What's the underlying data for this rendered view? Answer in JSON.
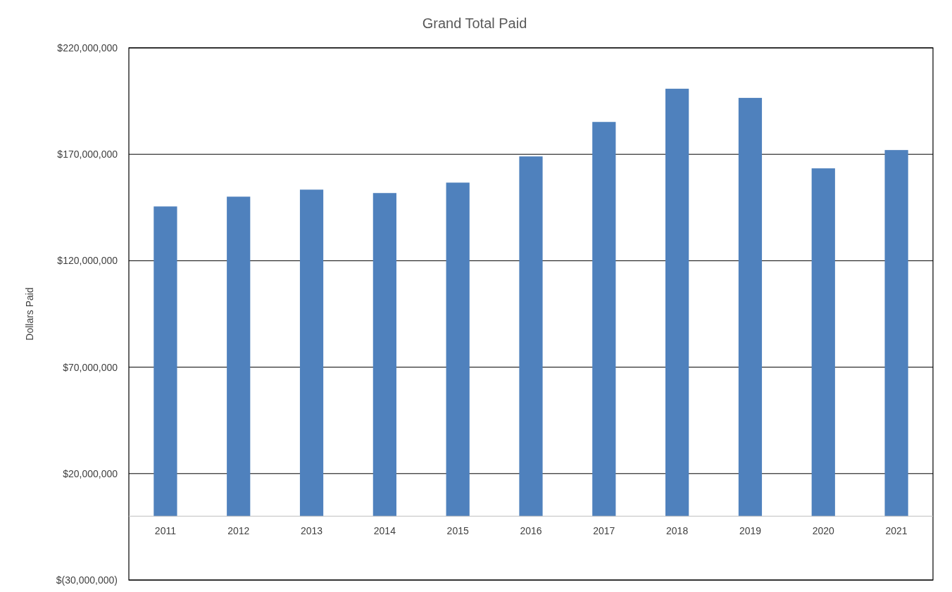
{
  "chart_data": {
    "type": "bar",
    "title": "Grand Total Paid",
    "ylabel": "Dollars Paid",
    "categories": [
      "2011",
      "2012",
      "2013",
      "2014",
      "2015",
      "2016",
      "2017",
      "2018",
      "2019",
      "2020",
      "2021"
    ],
    "values": [
      145500000,
      150100000,
      153400000,
      151800000,
      156700000,
      169000000,
      185200000,
      200800000,
      196500000,
      163400000,
      172000000
    ],
    "color": "#4f81bd",
    "ylim": [
      -30000000,
      220000000
    ],
    "yticks": [
      {
        "value": -30000000,
        "label": "$(30,000,000)"
      },
      {
        "value": 20000000,
        "label": "$20,000,000"
      },
      {
        "value": 70000000,
        "label": "$70,000,000"
      },
      {
        "value": 120000000,
        "label": "$120,000,000"
      },
      {
        "value": 170000000,
        "label": "$170,000,000"
      },
      {
        "value": 220000000,
        "label": "$220,000,000"
      }
    ],
    "grid": "y"
  }
}
